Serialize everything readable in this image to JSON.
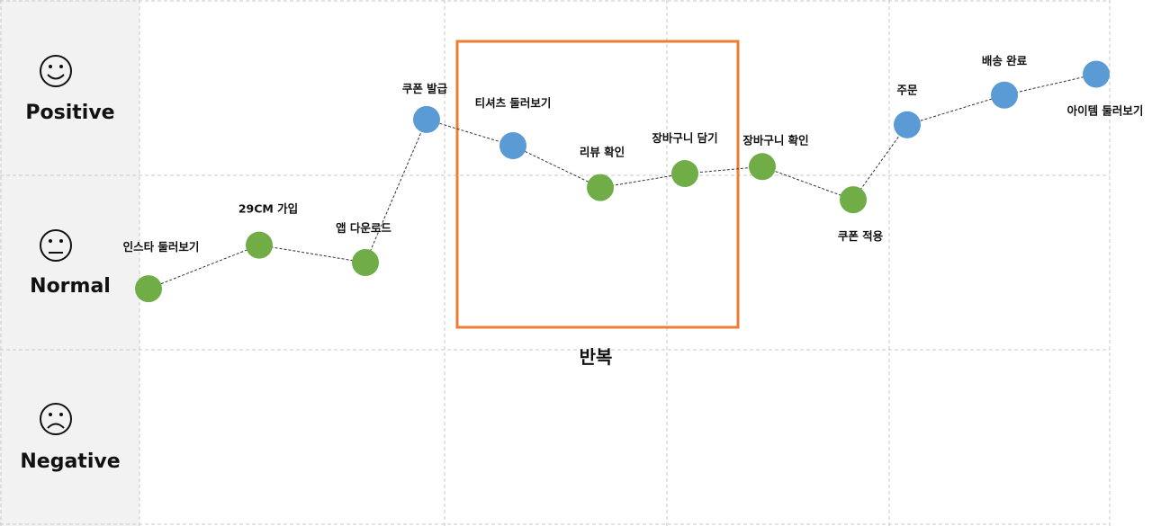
{
  "colors": {
    "positive_dot": "#5b9bd5",
    "normal_dot": "#70ad47",
    "loop_box": "#ed7d31",
    "label_column": "#f2f2f2",
    "grid": "#c8c8c8"
  },
  "rows": [
    {
      "label": "Positive",
      "face": "happy-face-icon"
    },
    {
      "label": "Normal",
      "face": "neutral-face-icon"
    },
    {
      "label": "Negative",
      "face": "sad-face-icon"
    }
  ],
  "steps": [
    {
      "label": "인스타 둘러보기",
      "emotion": "normal",
      "level": 0.35
    },
    {
      "label": "29CM 가입",
      "emotion": "normal",
      "level": 0.6
    },
    {
      "label": "앱 다운로드",
      "emotion": "normal",
      "level": 0.5
    },
    {
      "label": "쿠폰 발급",
      "emotion": "positive",
      "level": 1.32
    },
    {
      "label": "티셔츠 둘러보기",
      "emotion": "positive",
      "level": 1.17
    },
    {
      "label": "리뷰 확인",
      "emotion": "normal",
      "level": 0.93
    },
    {
      "label": "장바구니 담기",
      "emotion": "normal",
      "level": 1.01
    },
    {
      "label": "장바구니 확인",
      "emotion": "normal",
      "level": 1.05
    },
    {
      "label": "쿠폰 적용",
      "emotion": "normal",
      "level": 0.86
    },
    {
      "label": "주문",
      "emotion": "positive",
      "level": 1.29
    },
    {
      "label": "배송 완료",
      "emotion": "positive",
      "level": 1.46
    },
    {
      "label": "아이템 둘러보기",
      "emotion": "positive",
      "level": 1.58
    }
  ],
  "loop": {
    "label": "반복"
  }
}
